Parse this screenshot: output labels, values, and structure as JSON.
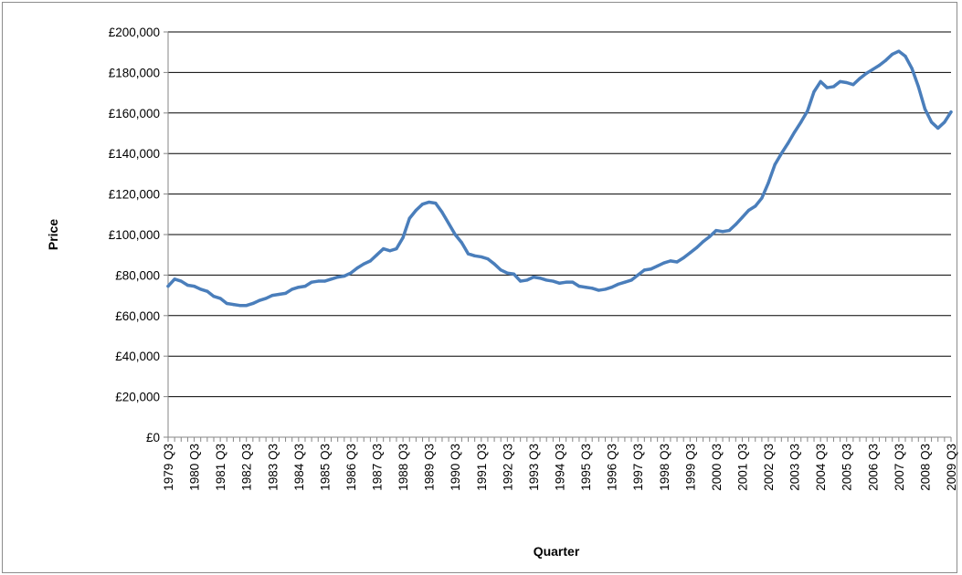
{
  "colors": {
    "line": "#4a7ebb",
    "grid": "#000000",
    "axis": "#868686",
    "frame": "#8c8c8c"
  },
  "chart_data": {
    "type": "line",
    "title": "",
    "xlabel": "Quarter",
    "ylabel": "Price",
    "ylim": [
      0,
      200000
    ],
    "yticks": [
      0,
      20000,
      40000,
      60000,
      80000,
      100000,
      120000,
      140000,
      160000,
      180000,
      200000
    ],
    "ytick_labels": [
      "£0",
      "£20,000",
      "£40,000",
      "£60,000",
      "£80,000",
      "£100,000",
      "£120,000",
      "£140,000",
      "£160,000",
      "£180,000",
      "£200,000"
    ],
    "grid": true,
    "legend": "none",
    "xtick_labels": [
      "1979 Q3",
      "1980 Q3",
      "1981 Q3",
      "1982 Q3",
      "1983 Q3",
      "1984 Q3",
      "1985 Q3",
      "1986 Q3",
      "1987 Q3",
      "1988 Q3",
      "1989 Q3",
      "1990 Q3",
      "1991 Q3",
      "1992 Q3",
      "1993 Q3",
      "1994 Q3",
      "1995 Q3",
      "1996 Q3",
      "1997 Q3",
      "1998 Q3",
      "1999 Q3",
      "2000 Q3",
      "2001 Q3",
      "2002 Q3",
      "2003 Q3",
      "2004 Q3",
      "2005 Q3",
      "2006 Q3",
      "2007 Q3",
      "2008 Q3",
      "2009 Q3"
    ],
    "x_start": "1979 Q3",
    "values": [
      74500,
      78000,
      77000,
      75000,
      74500,
      73000,
      72000,
      69500,
      68500,
      66000,
      65500,
      65000,
      65000,
      66000,
      67500,
      68500,
      70000,
      70500,
      71000,
      73000,
      74000,
      74500,
      76500,
      77000,
      77000,
      78000,
      79000,
      79500,
      81000,
      83500,
      85500,
      87000,
      90000,
      93000,
      92000,
      93000,
      98500,
      108000,
      112000,
      115000,
      116000,
      115500,
      111000,
      105500,
      100000,
      96000,
      90500,
      89500,
      89000,
      88000,
      85500,
      82500,
      81000,
      80500,
      77000,
      77500,
      79000,
      78500,
      77500,
      77000,
      76000,
      76500,
      76500,
      74500,
      74000,
      73500,
      72500,
      73000,
      74000,
      75500,
      76500,
      77500,
      80000,
      82500,
      83000,
      84500,
      86000,
      87000,
      86500,
      88500,
      91000,
      93500,
      96500,
      99000,
      102000,
      101500,
      102000,
      105000,
      108500,
      112000,
      114000,
      118000,
      125500,
      134500,
      140000,
      145000,
      150500,
      155500,
      161000,
      170500,
      175500,
      172500,
      173000,
      175500,
      175000,
      174000,
      177000,
      179500,
      181500,
      183500,
      186000,
      189000,
      190500,
      188000,
      182000,
      173000,
      162000,
      155500,
      152500,
      155500,
      160500
    ]
  }
}
